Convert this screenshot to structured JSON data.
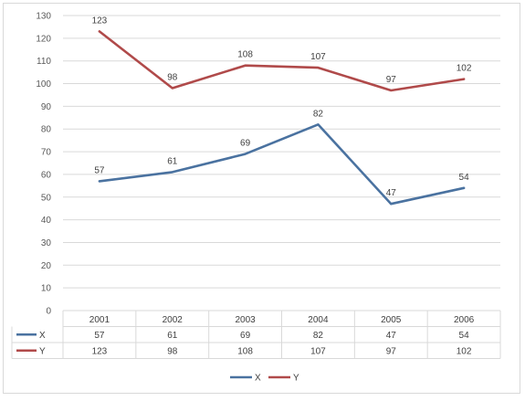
{
  "chart_data": {
    "type": "line",
    "title": "",
    "xlabel": "",
    "ylabel": "",
    "categories": [
      "2001",
      "2002",
      "2003",
      "2004",
      "2005",
      "2006"
    ],
    "ylim": [
      0,
      130
    ],
    "ytick_step": 10,
    "grid": true,
    "legend": "bottom",
    "data_table": true,
    "series": [
      {
        "name": "X",
        "color": "#4a72a0",
        "values": [
          57,
          61,
          69,
          82,
          47,
          54
        ]
      },
      {
        "name": "Y",
        "color": "#b04a4a",
        "values": [
          123,
          98,
          108,
          107,
          97,
          102
        ]
      }
    ]
  }
}
